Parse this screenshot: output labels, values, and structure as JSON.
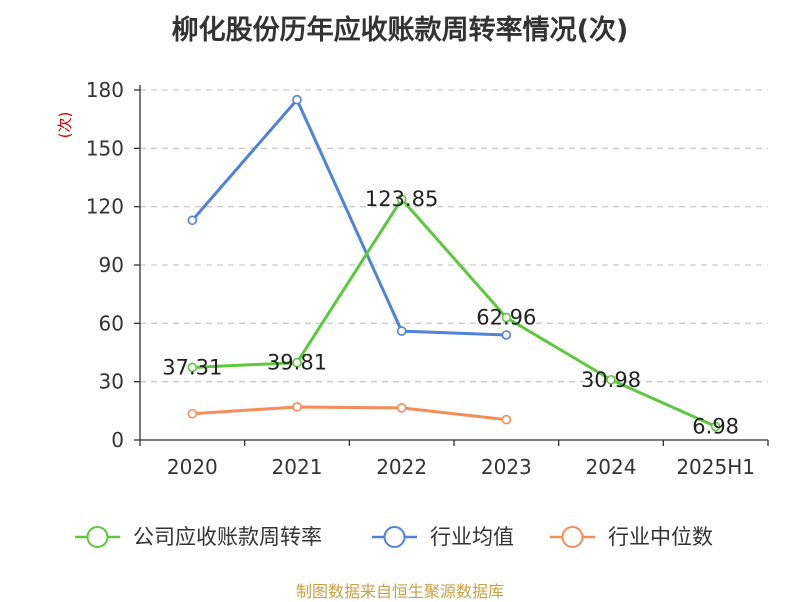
{
  "chart_data": {
    "type": "line",
    "title": "柳化股份历年应收账款周转率情况(次)",
    "ylabel": "(次)",
    "categories": [
      "2020",
      "2021",
      "2022",
      "2023",
      "2024",
      "2025H1"
    ],
    "ylim": [
      0,
      180
    ],
    "yticks": [
      0,
      30,
      60,
      90,
      120,
      150,
      180
    ],
    "grid": "horizontal-dashed",
    "legend_position": "bottom",
    "series": [
      {
        "name": "公司应收账款周转率",
        "color": "#5cc83c",
        "values": [
          37.31,
          39.81,
          123.85,
          62.96,
          30.98,
          6.98
        ],
        "labels": [
          "37.31",
          "39.81",
          "123.85",
          "62.96",
          "30.98",
          "6.98"
        ]
      },
      {
        "name": "行业均值",
        "color": "#4f82d8",
        "values": [
          113,
          175,
          56,
          54,
          null,
          null
        ]
      },
      {
        "name": "行业中位数",
        "color": "#f58c5a",
        "values": [
          13.5,
          17,
          16.5,
          10.5,
          null,
          null
        ]
      }
    ]
  },
  "source": "制图数据来自恒生聚源数据库"
}
